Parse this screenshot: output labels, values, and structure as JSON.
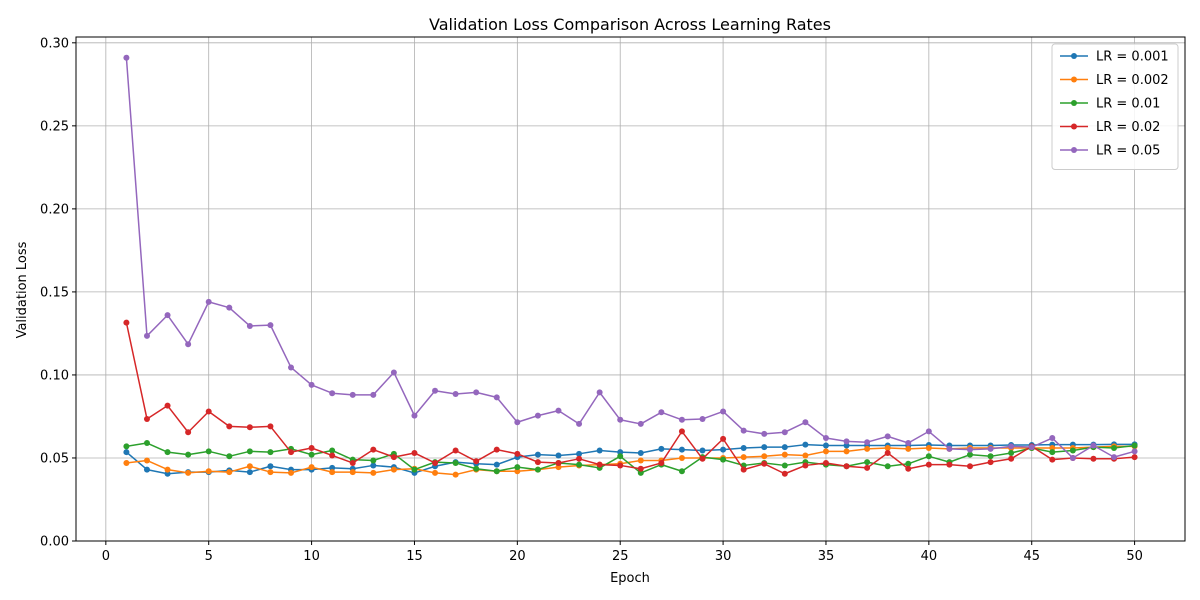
{
  "chart_data": {
    "type": "line",
    "title": "Validation Loss Comparison Across Learning Rates",
    "xlabel": "Epoch",
    "ylabel": "Validation Loss",
    "xlim": [
      -1.45,
      52.45
    ],
    "ylim": [
      0,
      0.3035
    ],
    "xticks": [
      0,
      5,
      10,
      15,
      20,
      25,
      30,
      35,
      40,
      45,
      50
    ],
    "yticks": [
      0.0,
      0.05,
      0.1,
      0.15,
      0.2,
      0.25,
      0.3
    ],
    "ytick_labels": [
      "0.00",
      "0.05",
      "0.10",
      "0.15",
      "0.20",
      "0.25",
      "0.30"
    ],
    "grid": true,
    "legend_position": "top-right",
    "x": [
      1,
      2,
      3,
      4,
      5,
      6,
      7,
      8,
      9,
      10,
      11,
      12,
      13,
      14,
      15,
      16,
      17,
      18,
      19,
      20,
      21,
      22,
      23,
      24,
      25,
      26,
      27,
      28,
      29,
      30,
      31,
      32,
      33,
      34,
      35,
      36,
      37,
      38,
      39,
      40,
      41,
      42,
      43,
      44,
      45,
      46,
      47,
      48,
      49,
      50
    ],
    "series": [
      {
        "name": "LR = 0.001",
        "color": "#1f77b4",
        "values": [
          0.0535,
          0.043,
          0.0405,
          0.0415,
          0.0415,
          0.0425,
          0.0415,
          0.045,
          0.043,
          0.043,
          0.044,
          0.0435,
          0.0455,
          0.0445,
          0.041,
          0.045,
          0.0475,
          0.0465,
          0.046,
          0.0505,
          0.052,
          0.0515,
          0.0525,
          0.0545,
          0.0535,
          0.053,
          0.0555,
          0.055,
          0.0545,
          0.055,
          0.056,
          0.0565,
          0.0565,
          0.058,
          0.0575,
          0.0575,
          0.0575,
          0.0575,
          0.0575,
          0.0578,
          0.0575,
          0.0575,
          0.0575,
          0.0578,
          0.0578,
          0.058,
          0.058,
          0.058,
          0.0582,
          0.0582
        ]
      },
      {
        "name": "LR = 0.002",
        "color": "#ff7f0e",
        "values": [
          0.047,
          0.0485,
          0.043,
          0.041,
          0.042,
          0.0415,
          0.045,
          0.0415,
          0.041,
          0.0445,
          0.0415,
          0.0415,
          0.041,
          0.043,
          0.0435,
          0.041,
          0.04,
          0.043,
          0.042,
          0.042,
          0.043,
          0.0445,
          0.0455,
          0.046,
          0.0465,
          0.0485,
          0.0485,
          0.05,
          0.05,
          0.05,
          0.0505,
          0.051,
          0.052,
          0.0515,
          0.054,
          0.054,
          0.0555,
          0.056,
          0.0555,
          0.056,
          0.0555,
          0.056,
          0.056,
          0.056,
          0.056,
          0.056,
          0.056,
          0.0565,
          0.057,
          0.057
        ]
      },
      {
        "name": "LR = 0.01",
        "color": "#2ca02c",
        "values": [
          0.057,
          0.059,
          0.0535,
          0.052,
          0.054,
          0.051,
          0.054,
          0.0535,
          0.0555,
          0.052,
          0.0545,
          0.049,
          0.0485,
          0.0525,
          0.043,
          0.0475,
          0.047,
          0.0435,
          0.042,
          0.0445,
          0.043,
          0.047,
          0.046,
          0.044,
          0.051,
          0.041,
          0.046,
          0.042,
          0.0505,
          0.049,
          0.0455,
          0.047,
          0.0455,
          0.0475,
          0.046,
          0.045,
          0.0475,
          0.045,
          0.0465,
          0.051,
          0.0475,
          0.052,
          0.051,
          0.053,
          0.056,
          0.0535,
          0.0545,
          0.0565,
          0.056,
          0.0575
        ]
      },
      {
        "name": "LR = 0.02",
        "color": "#d62728",
        "values": [
          0.1315,
          0.0735,
          0.0815,
          0.0655,
          0.078,
          0.069,
          0.0685,
          0.069,
          0.0535,
          0.056,
          0.0515,
          0.047,
          0.055,
          0.0505,
          0.053,
          0.047,
          0.0545,
          0.048,
          0.055,
          0.0525,
          0.0475,
          0.047,
          0.0495,
          0.046,
          0.0455,
          0.0435,
          0.047,
          0.066,
          0.0495,
          0.0615,
          0.043,
          0.0465,
          0.0405,
          0.0455,
          0.047,
          0.045,
          0.044,
          0.053,
          0.0435,
          0.046,
          0.046,
          0.045,
          0.0475,
          0.0495,
          0.057,
          0.049,
          0.05,
          0.0495,
          0.0495,
          0.0505
        ]
      },
      {
        "name": "LR = 0.05",
        "color": "#9467bd",
        "values": [
          0.291,
          0.1235,
          0.136,
          0.1185,
          0.144,
          0.1405,
          0.1295,
          0.13,
          0.1045,
          0.094,
          0.089,
          0.088,
          0.088,
          0.1015,
          0.0755,
          0.0905,
          0.0885,
          0.0895,
          0.0865,
          0.0715,
          0.0755,
          0.0785,
          0.0705,
          0.0895,
          0.073,
          0.0705,
          0.0775,
          0.073,
          0.0735,
          0.078,
          0.0665,
          0.0645,
          0.0655,
          0.0715,
          0.062,
          0.06,
          0.0595,
          0.063,
          0.059,
          0.066,
          0.0555,
          0.055,
          0.0555,
          0.057,
          0.0565,
          0.062,
          0.05,
          0.0575,
          0.0505,
          0.054
        ]
      }
    ]
  }
}
